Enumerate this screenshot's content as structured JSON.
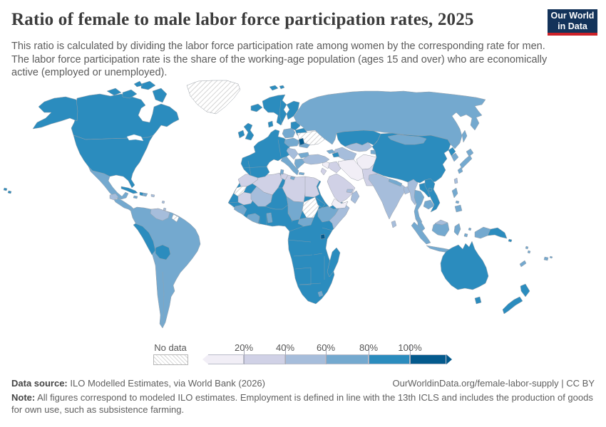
{
  "header": {
    "title": "Ratio of female to male labor force participation rates, 2025",
    "subtitle": "This ratio is calculated by dividing the labor force participation rate among women by the corresponding rate for men. The labor force participation rate is the share of the working-age population (ages 15 and over) who are economically active (employed or unemployed).",
    "logo": {
      "line1": "Our World",
      "line2": "in Data",
      "bg_color": "#13335a",
      "accent_color": "#cc2128"
    }
  },
  "legend": {
    "no_data_label": "No data",
    "tick_labels": [
      "20%",
      "40%",
      "60%",
      "80%",
      "100%"
    ],
    "bins": [
      {
        "key": "0-20",
        "color": "#f1eef6"
      },
      {
        "key": "20-40",
        "color": "#d0d1e6"
      },
      {
        "key": "40-60",
        "color": "#a6bddb"
      },
      {
        "key": "60-80",
        "color": "#74a9cf"
      },
      {
        "key": "80-100",
        "color": "#2b8cbe"
      },
      {
        "key": "over-100",
        "color": "#045a8d"
      }
    ]
  },
  "footer": {
    "data_source_label": "Data source:",
    "data_source": "ILO Modelled Estimates, via World Bank (2026)",
    "attribution_link": "OurWorldinData.org/female-labor-supply",
    "attribution_separator": " | ",
    "attribution_license": "CC BY",
    "note_label": "Note:",
    "note": "All figures correspond to modeled ILO estimates. Employment is defined in line with the 13th ICLS and includes the production of goods for own use, such as subsistence farming."
  },
  "chart_data": {
    "type": "choropleth_map",
    "title": "Ratio of female to male labor force participation rates",
    "year": "2025",
    "unit": "%",
    "no_data_style": "hatched",
    "region_bins": {
      "greenland": "no-data",
      "canada": "80-100",
      "united-states": "80-100",
      "mexico": "60-80",
      "guatemala": "40-60",
      "central-america": "60-80",
      "cuba": "80-100",
      "haiti": "80-100",
      "dominican-republic": "60-80",
      "jamaica": "60-80",
      "puerto-rico": "40-60",
      "lesser-antilles": "40-60",
      "south-america": "60-80",
      "venezuela": "40-60",
      "guyana": "no-data",
      "peru": "80-100",
      "bolivia": "80-100",
      "iceland": "80-100",
      "northern-europe": "80-100",
      "finland": "80-100",
      "denmark": "80-100",
      "united-kingdom": "80-100",
      "ireland": "80-100",
      "western-europe": "80-100",
      "poland": "60-80",
      "central-europe": "60-80",
      "italy": "60-80",
      "balkans": "40-60",
      "bulgaria": "60-80",
      "greece": "60-80",
      "romania": "60-80",
      "baltic-states": "80-100",
      "belarus": "80-100",
      "ukraine": "no-data",
      "moldova": "over-100",
      "svalbard": "80-100",
      "russia": "60-80",
      "kazakhstan": "80-100",
      "uzbekistan": "40-60",
      "turkmenistan": "40-60",
      "kyrgyzstan": "60-80",
      "tajikistan": "60-80",
      "afghanistan": "0-20",
      "pakistan": "20-40",
      "iran": "0-20",
      "iraq": "20-40",
      "syria": "0-20",
      "jordan": "20-40",
      "turkey": "40-60",
      "georgia": "60-80",
      "azerbaijan": "80-100",
      "saudi-arabia": "20-40",
      "yemen": "0-20",
      "oman": "40-60",
      "united-arab-emirates": "40-60",
      "morocco": "20-40",
      "western-sahara": "no-data",
      "algeria": "20-40",
      "tunisia": "20-40",
      "libya": "20-40",
      "egypt": "20-40",
      "mauritania": "20-40",
      "mali": "40-60",
      "niger": "80-100",
      "chad": "60-80",
      "sudan": "no-data",
      "eritrea": "80-100",
      "ethiopia": "60-80",
      "somalia": "40-60",
      "sub-saharan-africa": "80-100",
      "guinea": "60-80",
      "ivory-coast": "60-80",
      "togo-benin": "60-80",
      "central-african-republic": "60-80",
      "burundi": "over-100",
      "lesotho": "60-80",
      "madagascar": "80-100",
      "india": "40-60",
      "nepal": "60-80",
      "bangladesh": "40-60",
      "sri-lanka": "40-60",
      "myanmar": "40-60",
      "thailand": "60-80",
      "laos": "80-100",
      "vietnam": "80-100",
      "cambodia": "60-80",
      "malaysia": "60-80",
      "indonesia": "60-80",
      "malaysia-borneo": "40-60",
      "philippines": "60-80",
      "taiwan": "40-60",
      "china": "80-100",
      "mongolia": "60-80",
      "north-korea": "80-100",
      "south-korea": "60-80",
      "japan": "60-80",
      "papua-new-guinea": "80-100",
      "australia": "80-100",
      "new-zealand": "80-100",
      "new-caledonia": "60-80",
      "fiji": "60-80",
      "vanuatu": "60-80",
      "solomon-islands": "80-100"
    }
  }
}
